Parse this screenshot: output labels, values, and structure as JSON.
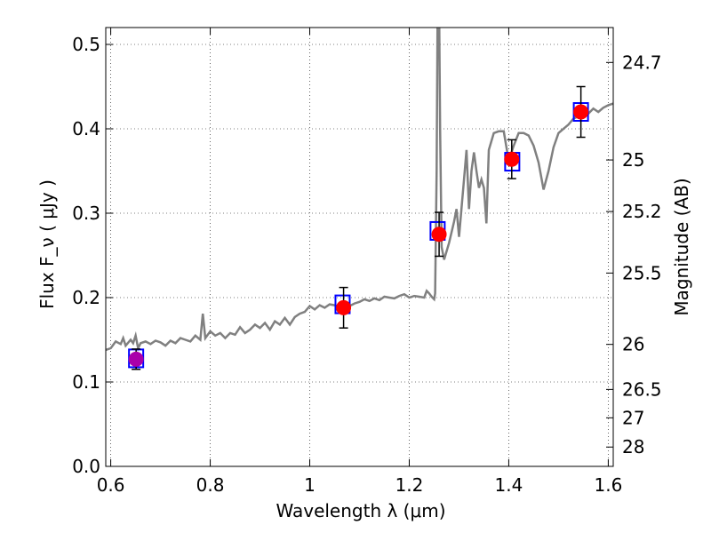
{
  "chart_data": {
    "type": "scatter",
    "xlabel": "Wavelength  λ (μm)",
    "ylabel": "Flux  F_ν  ( μJy )",
    "ylabel_right": "Magnitude (AB)",
    "xlim": [
      0.59,
      1.61
    ],
    "ylim": [
      0.0,
      0.52
    ],
    "grid": true,
    "x_ticks": [
      0.6,
      0.8,
      1.0,
      1.2,
      1.4,
      1.6
    ],
    "x_tick_labels": [
      "0.6",
      "0.8",
      "1",
      "1.2",
      "1.4",
      "1.6"
    ],
    "y_ticks": [
      0.0,
      0.1,
      0.2,
      0.3,
      0.4,
      0.5
    ],
    "y_tick_labels": [
      "0.0",
      "0.1",
      "0.2",
      "0.3",
      "0.4",
      "0.5"
    ],
    "right_ticks": [
      {
        "mag": 24.7,
        "label": "24.7"
      },
      {
        "mag": 25.0,
        "label": "25"
      },
      {
        "mag": 25.2,
        "label": "25.2"
      },
      {
        "mag": 25.5,
        "label": "25.5"
      },
      {
        "mag": 26.0,
        "label": "26"
      },
      {
        "mag": 26.5,
        "label": "26.5"
      },
      {
        "mag": 27.0,
        "label": "27"
      },
      {
        "mag": 28.0,
        "label": "28"
      }
    ],
    "spectrum": {
      "color": "#808080",
      "points": [
        [
          0.59,
          0.138
        ],
        [
          0.6,
          0.14
        ],
        [
          0.61,
          0.148
        ],
        [
          0.62,
          0.145
        ],
        [
          0.625,
          0.152
        ],
        [
          0.63,
          0.143
        ],
        [
          0.64,
          0.15
        ],
        [
          0.645,
          0.146
        ],
        [
          0.65,
          0.155
        ],
        [
          0.655,
          0.14
        ],
        [
          0.66,
          0.146
        ],
        [
          0.67,
          0.148
        ],
        [
          0.68,
          0.145
        ],
        [
          0.69,
          0.149
        ],
        [
          0.7,
          0.147
        ],
        [
          0.71,
          0.143
        ],
        [
          0.72,
          0.149
        ],
        [
          0.73,
          0.146
        ],
        [
          0.74,
          0.152
        ],
        [
          0.75,
          0.15
        ],
        [
          0.76,
          0.148
        ],
        [
          0.77,
          0.155
        ],
        [
          0.78,
          0.15
        ],
        [
          0.785,
          0.181
        ],
        [
          0.79,
          0.152
        ],
        [
          0.8,
          0.16
        ],
        [
          0.81,
          0.155
        ],
        [
          0.82,
          0.158
        ],
        [
          0.83,
          0.152
        ],
        [
          0.84,
          0.158
        ],
        [
          0.85,
          0.156
        ],
        [
          0.86,
          0.165
        ],
        [
          0.87,
          0.158
        ],
        [
          0.88,
          0.162
        ],
        [
          0.89,
          0.168
        ],
        [
          0.9,
          0.164
        ],
        [
          0.91,
          0.17
        ],
        [
          0.92,
          0.162
        ],
        [
          0.93,
          0.172
        ],
        [
          0.94,
          0.168
        ],
        [
          0.95,
          0.176
        ],
        [
          0.96,
          0.168
        ],
        [
          0.97,
          0.177
        ],
        [
          0.98,
          0.181
        ],
        [
          0.99,
          0.183
        ],
        [
          1.0,
          0.19
        ],
        [
          1.01,
          0.186
        ],
        [
          1.02,
          0.191
        ],
        [
          1.03,
          0.188
        ],
        [
          1.04,
          0.192
        ],
        [
          1.05,
          0.191
        ],
        [
          1.06,
          0.189
        ],
        [
          1.07,
          0.192
        ],
        [
          1.08,
          0.19
        ],
        [
          1.09,
          0.193
        ],
        [
          1.1,
          0.195
        ],
        [
          1.11,
          0.198
        ],
        [
          1.12,
          0.196
        ],
        [
          1.13,
          0.199
        ],
        [
          1.14,
          0.197
        ],
        [
          1.15,
          0.201
        ],
        [
          1.16,
          0.2
        ],
        [
          1.17,
          0.199
        ],
        [
          1.18,
          0.202
        ],
        [
          1.19,
          0.204
        ],
        [
          1.2,
          0.2
        ],
        [
          1.21,
          0.202
        ],
        [
          1.22,
          0.201
        ],
        [
          1.23,
          0.2
        ],
        [
          1.235,
          0.208
        ],
        [
          1.24,
          0.205
        ],
        [
          1.245,
          0.201
        ],
        [
          1.25,
          0.198
        ],
        [
          1.252,
          0.205
        ],
        [
          1.255,
          0.35
        ],
        [
          1.257,
          0.545
        ],
        [
          1.26,
          0.545
        ],
        [
          1.262,
          0.4
        ],
        [
          1.265,
          0.26
        ],
        [
          1.27,
          0.245
        ],
        [
          1.28,
          0.265
        ],
        [
          1.29,
          0.29
        ],
        [
          1.295,
          0.305
        ],
        [
          1.3,
          0.272
        ],
        [
          1.31,
          0.34
        ],
        [
          1.315,
          0.375
        ],
        [
          1.32,
          0.305
        ],
        [
          1.325,
          0.35
        ],
        [
          1.33,
          0.372
        ],
        [
          1.335,
          0.35
        ],
        [
          1.34,
          0.33
        ],
        [
          1.345,
          0.34
        ],
        [
          1.35,
          0.33
        ],
        [
          1.355,
          0.288
        ],
        [
          1.36,
          0.375
        ],
        [
          1.37,
          0.395
        ],
        [
          1.38,
          0.397
        ],
        [
          1.39,
          0.397
        ],
        [
          1.4,
          0.362
        ],
        [
          1.41,
          0.38
        ],
        [
          1.42,
          0.395
        ],
        [
          1.43,
          0.395
        ],
        [
          1.44,
          0.392
        ],
        [
          1.45,
          0.38
        ],
        [
          1.46,
          0.36
        ],
        [
          1.47,
          0.328
        ],
        [
          1.48,
          0.35
        ],
        [
          1.49,
          0.378
        ],
        [
          1.5,
          0.395
        ],
        [
          1.51,
          0.4
        ],
        [
          1.52,
          0.405
        ],
        [
          1.53,
          0.412
        ],
        [
          1.54,
          0.415
        ],
        [
          1.55,
          0.42
        ],
        [
          1.56,
          0.418
        ],
        [
          1.57,
          0.424
        ],
        [
          1.58,
          0.42
        ],
        [
          1.59,
          0.425
        ],
        [
          1.6,
          0.428
        ],
        [
          1.61,
          0.43
        ]
      ]
    },
    "model_points": {
      "marker": "open-square",
      "color": "#0000ff",
      "points": [
        {
          "x": 0.651,
          "y": 0.128
        },
        {
          "x": 1.066,
          "y": 0.192
        },
        {
          "x": 1.257,
          "y": 0.279
        },
        {
          "x": 1.407,
          "y": 0.361
        },
        {
          "x": 1.545,
          "y": 0.42
        }
      ]
    },
    "observed_points": {
      "marker": "filled-circle",
      "color": "#ff0000",
      "first_color": "#aa00aa",
      "points": [
        {
          "x": 0.651,
          "y": 0.127,
          "err": 0.012
        },
        {
          "x": 1.068,
          "y": 0.188,
          "err": 0.024
        },
        {
          "x": 1.26,
          "y": 0.275,
          "err": 0.026
        },
        {
          "x": 1.406,
          "y": 0.364,
          "err": 0.023
        },
        {
          "x": 1.545,
          "y": 0.42,
          "err": 0.03
        }
      ]
    }
  }
}
